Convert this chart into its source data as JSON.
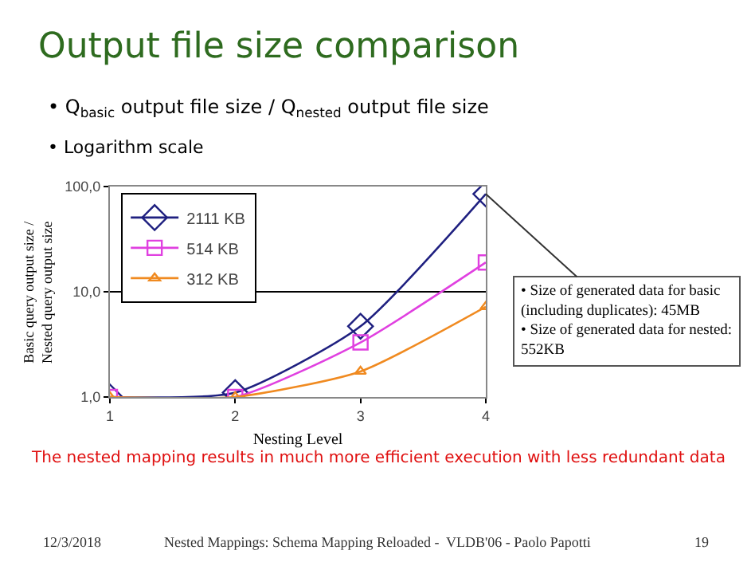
{
  "chart_data": {
    "type": "line",
    "title": "Output file size comparison",
    "subtitle": "• Q$_{basic}$ output file size / Q$_{nested}$ output file size",
    "xlabel": "Nesting Level",
    "ylabel": "Basic query output size /\nNested query output size",
    "x": [
      1,
      2,
      3,
      4
    ],
    "series": [
      {
        "name": "2111 KB",
        "color": "#1f2080",
        "marker": "diamond",
        "values": [
          1.0,
          1.1,
          4.7,
          85
        ]
      },
      {
        "name": "514 KB",
        "color": "#e040e0",
        "marker": "square",
        "values": [
          1.0,
          1.0,
          3.3,
          19
        ]
      },
      {
        "name": "312 KB",
        "color": "#f08a20",
        "marker": "triangle",
        "values": [
          1.0,
          1.0,
          1.75,
          7.2
        ]
      }
    ],
    "log": "y",
    "xlim": [
      1,
      4
    ],
    "xticks": [
      1,
      2,
      3,
      4
    ],
    "ylim": [
      1,
      100
    ],
    "yticks": [
      {
        "value": 1,
        "label": "1,0"
      },
      {
        "value": 10,
        "label": "10,0"
      },
      {
        "value": 100,
        "label": "100,0"
      }
    ],
    "grid": "y",
    "legend": "top left",
    "annotations": [
      "• Logarithm scale",
      {
        "text": "• Size of generated data for basic\n(including duplicates): 45MB\n• Size of generated data for nested:\n552KB",
        "x": 4,
        "y": 85
      },
      "The nested mapping results in much more efficient execution with less redundant data",
      "12/3/2018",
      "Nested Mappings: Schema Mapping Reloaded -  VLDB'06 - Paolo Papotti",
      "19"
    ]
  }
}
